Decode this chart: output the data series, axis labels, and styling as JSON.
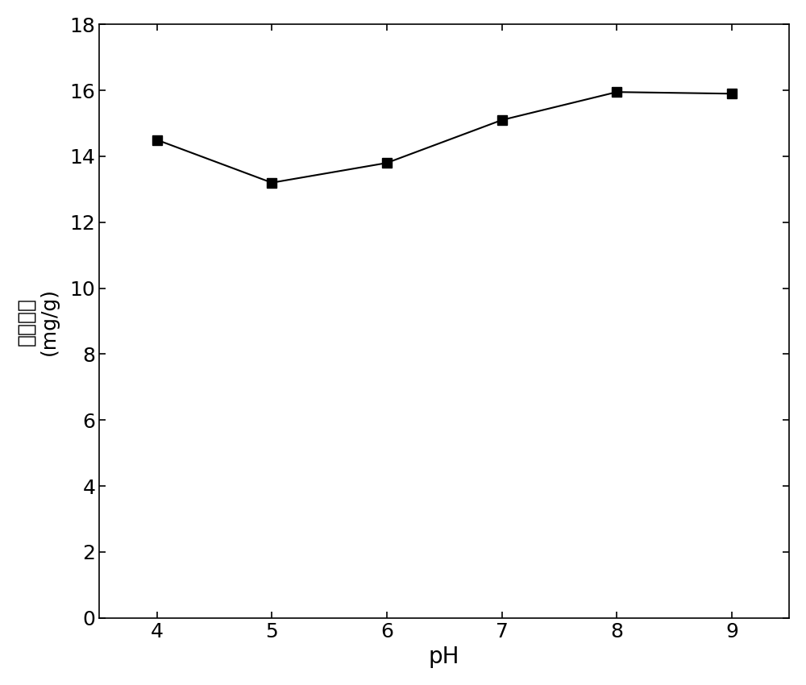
{
  "x": [
    4,
    5,
    6,
    7,
    8,
    9
  ],
  "y": [
    14.5,
    13.2,
    13.8,
    15.1,
    15.95,
    15.9
  ],
  "xlabel": "pH",
  "ylabel_line1": "磷吸附量",
  "ylabel_line2": "(mg/g)",
  "xlim": [
    3.5,
    9.5
  ],
  "ylim": [
    0,
    18
  ],
  "xticks": [
    4,
    5,
    6,
    7,
    8,
    9
  ],
  "yticks": [
    0,
    2,
    4,
    6,
    8,
    10,
    12,
    14,
    16,
    18
  ],
  "line_color": "#000000",
  "marker": "s",
  "marker_size": 9,
  "marker_color": "#000000",
  "line_width": 1.5,
  "background_color": "#ffffff",
  "xlabel_fontsize": 20,
  "ylabel_fontsize": 18,
  "tick_fontsize": 18
}
